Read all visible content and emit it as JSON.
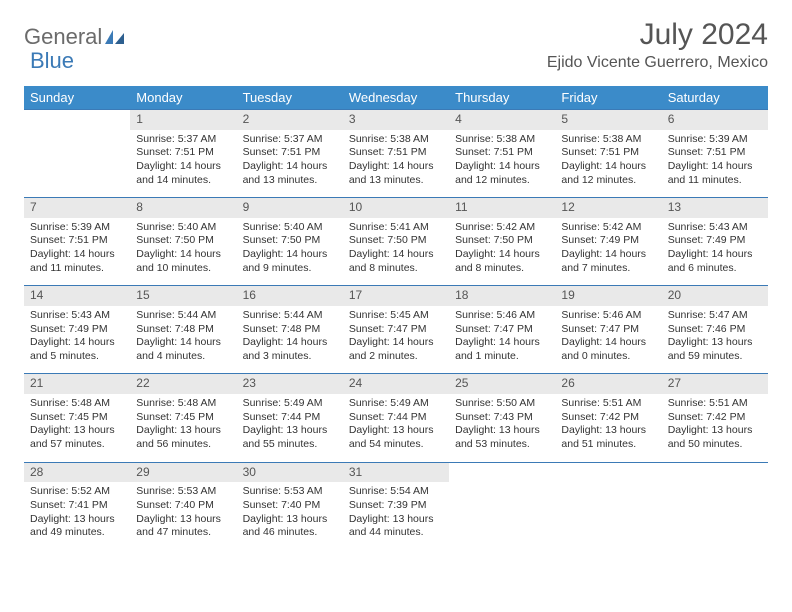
{
  "logo": {
    "part1": "General",
    "part2": "Blue"
  },
  "title": "July 2024",
  "location": "Ejido Vicente Guerrero, Mexico",
  "header_bg": "#3b8bc9",
  "header_fg": "#ffffff",
  "daynum_bg": "#e9e9e9",
  "rule_color": "#3b7ab6",
  "text_color": "#333333",
  "font_size_cell": 10.5,
  "days": [
    "Sunday",
    "Monday",
    "Tuesday",
    "Wednesday",
    "Thursday",
    "Friday",
    "Saturday"
  ],
  "weeks": [
    [
      null,
      {
        "n": "1",
        "sr": "5:37 AM",
        "ss": "7:51 PM",
        "dl": "14 hours and 14 minutes."
      },
      {
        "n": "2",
        "sr": "5:37 AM",
        "ss": "7:51 PM",
        "dl": "14 hours and 13 minutes."
      },
      {
        "n": "3",
        "sr": "5:38 AM",
        "ss": "7:51 PM",
        "dl": "14 hours and 13 minutes."
      },
      {
        "n": "4",
        "sr": "5:38 AM",
        "ss": "7:51 PM",
        "dl": "14 hours and 12 minutes."
      },
      {
        "n": "5",
        "sr": "5:38 AM",
        "ss": "7:51 PM",
        "dl": "14 hours and 12 minutes."
      },
      {
        "n": "6",
        "sr": "5:39 AM",
        "ss": "7:51 PM",
        "dl": "14 hours and 11 minutes."
      }
    ],
    [
      {
        "n": "7",
        "sr": "5:39 AM",
        "ss": "7:51 PM",
        "dl": "14 hours and 11 minutes."
      },
      {
        "n": "8",
        "sr": "5:40 AM",
        "ss": "7:50 PM",
        "dl": "14 hours and 10 minutes."
      },
      {
        "n": "9",
        "sr": "5:40 AM",
        "ss": "7:50 PM",
        "dl": "14 hours and 9 minutes."
      },
      {
        "n": "10",
        "sr": "5:41 AM",
        "ss": "7:50 PM",
        "dl": "14 hours and 8 minutes."
      },
      {
        "n": "11",
        "sr": "5:42 AM",
        "ss": "7:50 PM",
        "dl": "14 hours and 8 minutes."
      },
      {
        "n": "12",
        "sr": "5:42 AM",
        "ss": "7:49 PM",
        "dl": "14 hours and 7 minutes."
      },
      {
        "n": "13",
        "sr": "5:43 AM",
        "ss": "7:49 PM",
        "dl": "14 hours and 6 minutes."
      }
    ],
    [
      {
        "n": "14",
        "sr": "5:43 AM",
        "ss": "7:49 PM",
        "dl": "14 hours and 5 minutes."
      },
      {
        "n": "15",
        "sr": "5:44 AM",
        "ss": "7:48 PM",
        "dl": "14 hours and 4 minutes."
      },
      {
        "n": "16",
        "sr": "5:44 AM",
        "ss": "7:48 PM",
        "dl": "14 hours and 3 minutes."
      },
      {
        "n": "17",
        "sr": "5:45 AM",
        "ss": "7:47 PM",
        "dl": "14 hours and 2 minutes."
      },
      {
        "n": "18",
        "sr": "5:46 AM",
        "ss": "7:47 PM",
        "dl": "14 hours and 1 minute."
      },
      {
        "n": "19",
        "sr": "5:46 AM",
        "ss": "7:47 PM",
        "dl": "14 hours and 0 minutes."
      },
      {
        "n": "20",
        "sr": "5:47 AM",
        "ss": "7:46 PM",
        "dl": "13 hours and 59 minutes."
      }
    ],
    [
      {
        "n": "21",
        "sr": "5:48 AM",
        "ss": "7:45 PM",
        "dl": "13 hours and 57 minutes."
      },
      {
        "n": "22",
        "sr": "5:48 AM",
        "ss": "7:45 PM",
        "dl": "13 hours and 56 minutes."
      },
      {
        "n": "23",
        "sr": "5:49 AM",
        "ss": "7:44 PM",
        "dl": "13 hours and 55 minutes."
      },
      {
        "n": "24",
        "sr": "5:49 AM",
        "ss": "7:44 PM",
        "dl": "13 hours and 54 minutes."
      },
      {
        "n": "25",
        "sr": "5:50 AM",
        "ss": "7:43 PM",
        "dl": "13 hours and 53 minutes."
      },
      {
        "n": "26",
        "sr": "5:51 AM",
        "ss": "7:42 PM",
        "dl": "13 hours and 51 minutes."
      },
      {
        "n": "27",
        "sr": "5:51 AM",
        "ss": "7:42 PM",
        "dl": "13 hours and 50 minutes."
      }
    ],
    [
      {
        "n": "28",
        "sr": "5:52 AM",
        "ss": "7:41 PM",
        "dl": "13 hours and 49 minutes."
      },
      {
        "n": "29",
        "sr": "5:53 AM",
        "ss": "7:40 PM",
        "dl": "13 hours and 47 minutes."
      },
      {
        "n": "30",
        "sr": "5:53 AM",
        "ss": "7:40 PM",
        "dl": "13 hours and 46 minutes."
      },
      {
        "n": "31",
        "sr": "5:54 AM",
        "ss": "7:39 PM",
        "dl": "13 hours and 44 minutes."
      },
      null,
      null,
      null
    ]
  ]
}
